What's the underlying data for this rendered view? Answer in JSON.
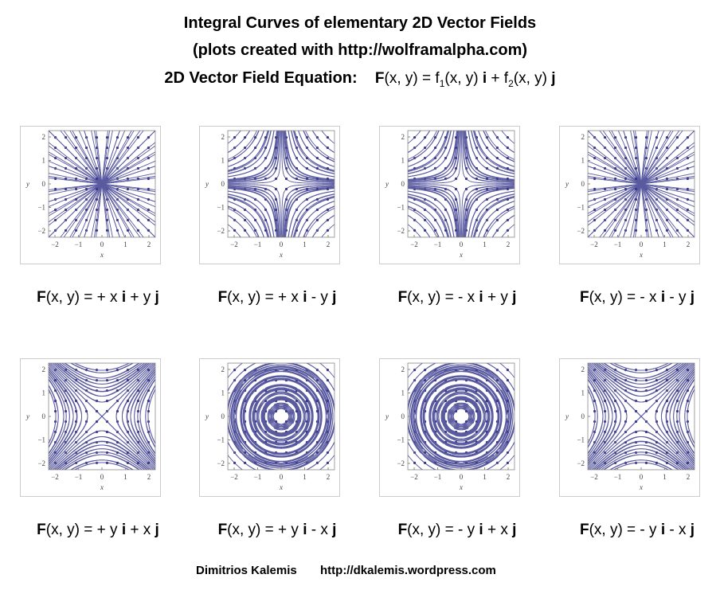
{
  "header": {
    "title": "Integral Curves of elementary 2D Vector Fields",
    "subtitle": "(plots created with http://wolframalpha.com)",
    "equation_label": "2D Vector Field Equation:",
    "equation": [
      "F",
      "(x, y) = f",
      "1",
      "(x, y) ",
      "i",
      " + f",
      "2",
      "(x, y) ",
      "j"
    ]
  },
  "axis": {
    "ticks": [
      "−2",
      "−1",
      "0",
      "1",
      "2"
    ],
    "x_label": "x",
    "y_label": "y"
  },
  "panels": [
    {
      "equation": [
        "F",
        "(x, y) = + x ",
        "i",
        " + y ",
        "j"
      ]
    },
    {
      "equation": [
        "F",
        "(x, y) = + x ",
        "i",
        " - y ",
        "j"
      ]
    },
    {
      "equation": [
        "F",
        "(x, y) = - x ",
        "i",
        " + y ",
        "j"
      ]
    },
    {
      "equation": [
        "F",
        "(x, y) = - x ",
        "i",
        " - y ",
        "j"
      ]
    },
    {
      "equation": [
        "F",
        "(x, y) = + y ",
        "i",
        " + x ",
        "j"
      ]
    },
    {
      "equation": [
        "F",
        "(x, y) = + y ",
        "i",
        " - x ",
        "j"
      ]
    },
    {
      "equation": [
        "F",
        "(x, y) = - y ",
        "i",
        " + x ",
        "j"
      ]
    },
    {
      "equation": [
        "F",
        "(x, y) = - y ",
        "i",
        " - x ",
        "j"
      ]
    }
  ],
  "footer": {
    "author": "Dimitrios Kalemis",
    "url": "http://dkalemis.wordpress.com"
  }
}
